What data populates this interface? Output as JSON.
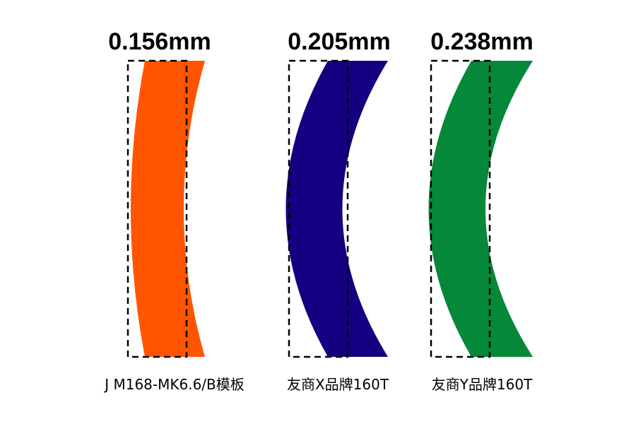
{
  "specimens": [
    {
      "measurement": "0.156mm",
      "caption": "J M168-MK6.6/B模板",
      "color": "#ff5500"
    },
    {
      "measurement": "0.205mm",
      "caption": "友商X品牌160T",
      "color": "#140080"
    },
    {
      "measurement": "0.238mm",
      "caption": "友商Y品牌160T",
      "color": "#05883a"
    }
  ]
}
